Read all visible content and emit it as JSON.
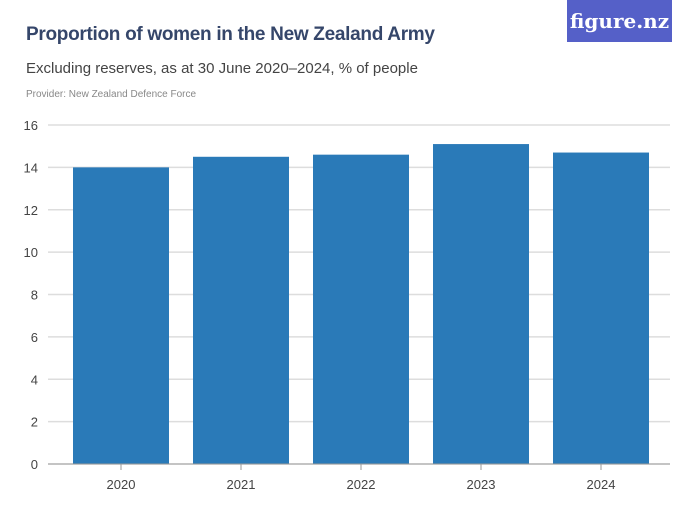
{
  "logo": "figure.nz",
  "colors": {
    "bar": "#2a7ab8",
    "logo_bg": "#5560c8"
  },
  "chart_data": {
    "type": "bar",
    "title": "Proportion of women in the New Zealand Army",
    "subtitle": "Excluding reserves, as at 30 June 2020–2024, % of people",
    "provider": "Provider: New Zealand Defence Force",
    "categories": [
      "2020",
      "2021",
      "2022",
      "2023",
      "2024"
    ],
    "values": [
      14.0,
      14.5,
      14.6,
      15.1,
      14.7
    ],
    "ylim": [
      0,
      16
    ],
    "yticks": [
      0,
      2,
      4,
      6,
      8,
      10,
      12,
      14,
      16
    ],
    "grid": true
  }
}
